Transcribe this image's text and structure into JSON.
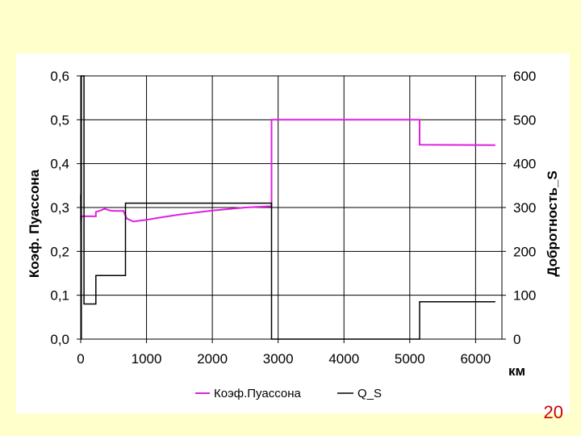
{
  "page_number": "20",
  "colors": {
    "background": "#ffffcc",
    "panel": "#ffffff",
    "series_poisson": "#e020e0",
    "series_q": "#000000",
    "grid": "#000000",
    "page_number": "#cc0000"
  },
  "chart_data": {
    "type": "line",
    "title": "",
    "xlabel": "км",
    "ylabel": "Коэф. Пуассона",
    "y2label": "Добротность_S",
    "xlim": [
      0,
      6400
    ],
    "ylim": [
      0,
      0.6
    ],
    "y2lim": [
      0,
      600
    ],
    "x_ticks": [
      0,
      1000,
      2000,
      3000,
      4000,
      5000,
      6000
    ],
    "x_tick_labels": [
      "0",
      "1000",
      "2000",
      "3000",
      "4000",
      "5000",
      "6000"
    ],
    "y_ticks": [
      0,
      0.1,
      0.2,
      0.3,
      0.4,
      0.5,
      0.6
    ],
    "y_tick_labels": [
      "0,0",
      "0,1",
      "0,2",
      "0,3",
      "0,4",
      "0,5",
      "0,6"
    ],
    "y2_ticks": [
      0,
      100,
      200,
      300,
      400,
      500,
      600
    ],
    "y2_tick_labels": [
      "0",
      "100",
      "200",
      "300",
      "400",
      "500",
      "600"
    ],
    "grid": true,
    "legend_position": "bottom",
    "series": [
      {
        "name": "Коэф.Пуассона",
        "axis": "left",
        "x": [
          0,
          10,
          10,
          230,
          230,
          300,
          360,
          450,
          500,
          600,
          650,
          650,
          700,
          800,
          900,
          1000,
          1200,
          1500,
          2000,
          2500,
          2900,
          2900,
          5150,
          5150,
          6300
        ],
        "y": [
          0.28,
          0.27,
          0.28,
          0.28,
          0.29,
          0.293,
          0.297,
          0.293,
          0.292,
          0.292,
          0.292,
          0.292,
          0.275,
          0.268,
          0.27,
          0.272,
          0.277,
          0.284,
          0.293,
          0.3,
          0.303,
          0.5,
          0.5,
          0.443,
          0.442
        ]
      },
      {
        "name": "Q_S",
        "axis": "right",
        "x": [
          0,
          10,
          10,
          50,
          50,
          80,
          80,
          230,
          230,
          680,
          680,
          2900,
          2900,
          5150,
          5150,
          6300
        ],
        "y": [
          330,
          0,
          600,
          600,
          80,
          80,
          80,
          80,
          145,
          145,
          310,
          310,
          0,
          0,
          85,
          85
        ]
      }
    ]
  }
}
